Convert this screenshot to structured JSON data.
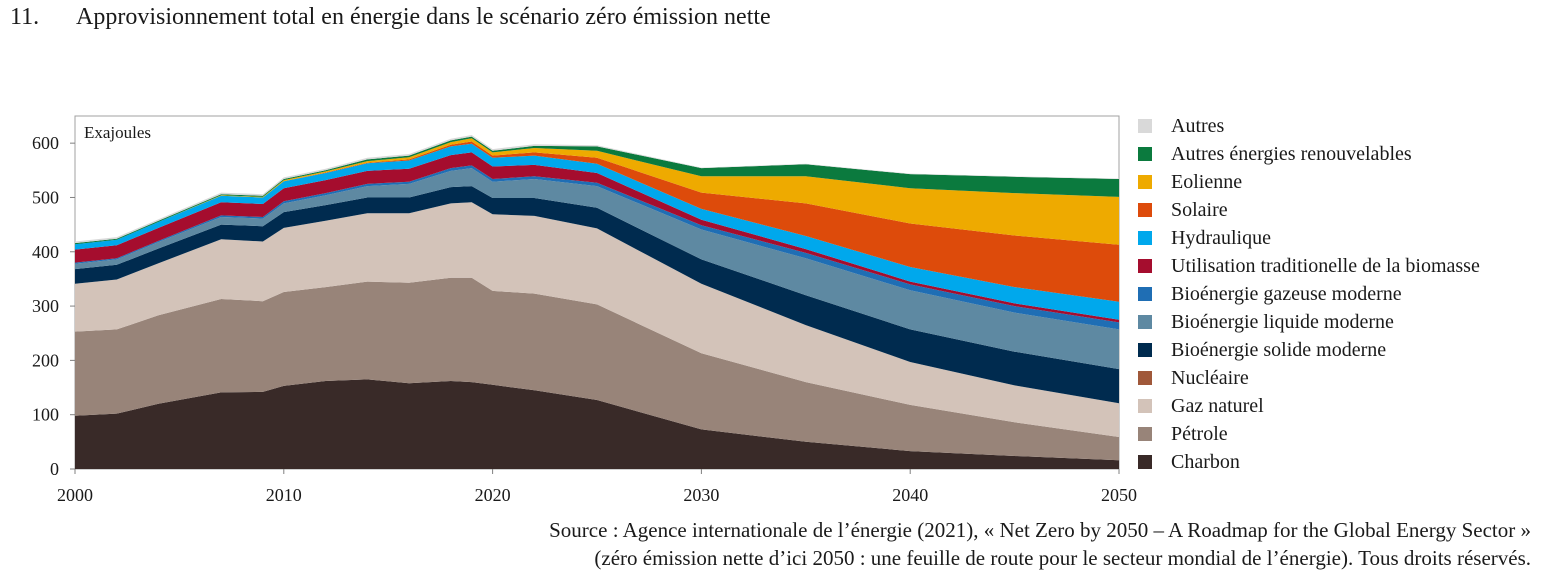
{
  "figure": {
    "number": "11.",
    "title": "Approvisionnement total en énergie dans le scénario zéro émission nette"
  },
  "source": {
    "line1": "Source : Agence internationale de l’énergie (2021), « Net Zero by 2050 – A Roadmap for the Global Energy Sector »",
    "line2": "(zéro émission nette d’ici 2050 : une feuille de route pour le secteur mondial de l’énergie). Tous droits réservés."
  },
  "legend": [
    {
      "label": "Autres",
      "color": "#d9d9d9"
    },
    {
      "label": "Autres énergies renouvelables",
      "color": "#0b7a3e"
    },
    {
      "label": "Eolienne",
      "color": "#eeaa00"
    },
    {
      "label": "Solaire",
      "color": "#dd4b0b"
    },
    {
      "label": "Hydraulique",
      "color": "#00a8ec"
    },
    {
      "label": "Utilisation traditionelle de la biomasse",
      "color": "#a50d2e"
    },
    {
      "label": "Bioénergie gazeuse moderne",
      "color": "#1f6eb4"
    },
    {
      "label": "Bioénergie liquide moderne",
      "color": "#5e89a2"
    },
    {
      "label": "Bioénergie solide moderne",
      "color": "#002b4f"
    },
    {
      "label": "Nucléaire",
      "color": "#a0583a"
    },
    {
      "label": "Gaz naturel",
      "color": "#d3c3b9"
    },
    {
      "label": "Pétrole",
      "color": "#988479"
    },
    {
      "label": "Charbon",
      "color": "#392a28"
    }
  ],
  "chart_data": {
    "type": "area",
    "stacked": true,
    "ylabel": "Exajoules",
    "ylim": [
      0,
      650
    ],
    "yticks": [
      0,
      100,
      200,
      300,
      400,
      500,
      600
    ],
    "xlim": [
      2000,
      2050
    ],
    "xticks": [
      2000,
      2010,
      2020,
      2030,
      2040,
      2050
    ],
    "x": [
      2000,
      2002,
      2004,
      2007,
      2009,
      2010,
      2012,
      2014,
      2016,
      2018,
      2019,
      2020,
      2022,
      2025,
      2030,
      2035,
      2040,
      2045,
      2050
    ],
    "series": [
      {
        "name": "Charbon",
        "color": "#392a28",
        "values": [
          98,
          102,
          120,
          141,
          142,
          153,
          162,
          165,
          158,
          162,
          160,
          155,
          145,
          127,
          73,
          50,
          33,
          24,
          16
        ]
      },
      {
        "name": "Pétrole",
        "color": "#988479",
        "values": [
          155,
          155,
          163,
          172,
          167,
          173,
          173,
          180,
          185,
          190,
          192,
          173,
          178,
          176,
          140,
          110,
          85,
          62,
          43
        ]
      },
      {
        "name": "Gaz naturel",
        "color": "#d3c3b9",
        "values": [
          88,
          92,
          96,
          110,
          110,
          118,
          122,
          126,
          128,
          137,
          139,
          141,
          143,
          140,
          128,
          105,
          79,
          68,
          62
        ]
      },
      {
        "name": "Nucléaire",
        "color": "#a0583a",
        "values": [
          0,
          0,
          0,
          0,
          0,
          0,
          0,
          0,
          0,
          0,
          0,
          0,
          0,
          0,
          0,
          0,
          0,
          0,
          0
        ]
      },
      {
        "name": "Bioénergie solide moderne",
        "color": "#002b4f",
        "values": [
          27,
          27,
          27,
          27,
          28,
          29,
          29,
          29,
          29,
          30,
          30,
          30,
          33,
          38,
          45,
          55,
          60,
          62,
          63
        ]
      },
      {
        "name": "Bioénergie liquide moderne",
        "color": "#5e89a2",
        "values": [
          10,
          10,
          12,
          14,
          14,
          16,
          18,
          21,
          25,
          30,
          33,
          30,
          35,
          40,
          55,
          68,
          72,
          72,
          73
        ]
      },
      {
        "name": "Bioénergie gazeuse moderne",
        "color": "#1f6eb4",
        "values": [
          2,
          2,
          2,
          3,
          3,
          4,
          4,
          4,
          4,
          5,
          5,
          5,
          5,
          6,
          8,
          10,
          11,
          12,
          13
        ]
      },
      {
        "name": "Utilisation traditionelle de la biomasse",
        "color": "#a50d2e",
        "values": [
          24,
          24,
          24,
          24,
          24,
          24,
          24,
          24,
          24,
          24,
          24,
          23,
          21,
          18,
          10,
          7,
          5,
          5,
          5
        ]
      },
      {
        "name": "Hydraulique",
        "color": "#00a8ec",
        "values": [
          10,
          10,
          11,
          12,
          12,
          13,
          13,
          14,
          15,
          16,
          16,
          16,
          17,
          17,
          20,
          24,
          27,
          30,
          33
        ]
      },
      {
        "name": "Solaire",
        "color": "#dd4b0b",
        "values": [
          0,
          0,
          0,
          0,
          0,
          0,
          1,
          1,
          2,
          3,
          4,
          4,
          6,
          11,
          30,
          60,
          80,
          95,
          105
        ]
      },
      {
        "name": "Eolienne",
        "color": "#eeaa00",
        "values": [
          0,
          0,
          0,
          1,
          1,
          2,
          2,
          3,
          4,
          5,
          6,
          6,
          8,
          13,
          30,
          50,
          65,
          78,
          88
        ]
      },
      {
        "name": "Autres énergies renouvelables",
        "color": "#0b7a3e",
        "values": [
          2,
          2,
          2,
          2,
          2,
          2,
          2,
          3,
          3,
          3,
          3,
          3,
          4,
          8,
          15,
          22,
          26,
          30,
          33
        ]
      },
      {
        "name": "Autres",
        "color": "#d9d9d9",
        "values": [
          3,
          3,
          3,
          3,
          3,
          3,
          3,
          3,
          3,
          3,
          3,
          3,
          3,
          2,
          1,
          1,
          1,
          1,
          1
        ]
      }
    ]
  }
}
